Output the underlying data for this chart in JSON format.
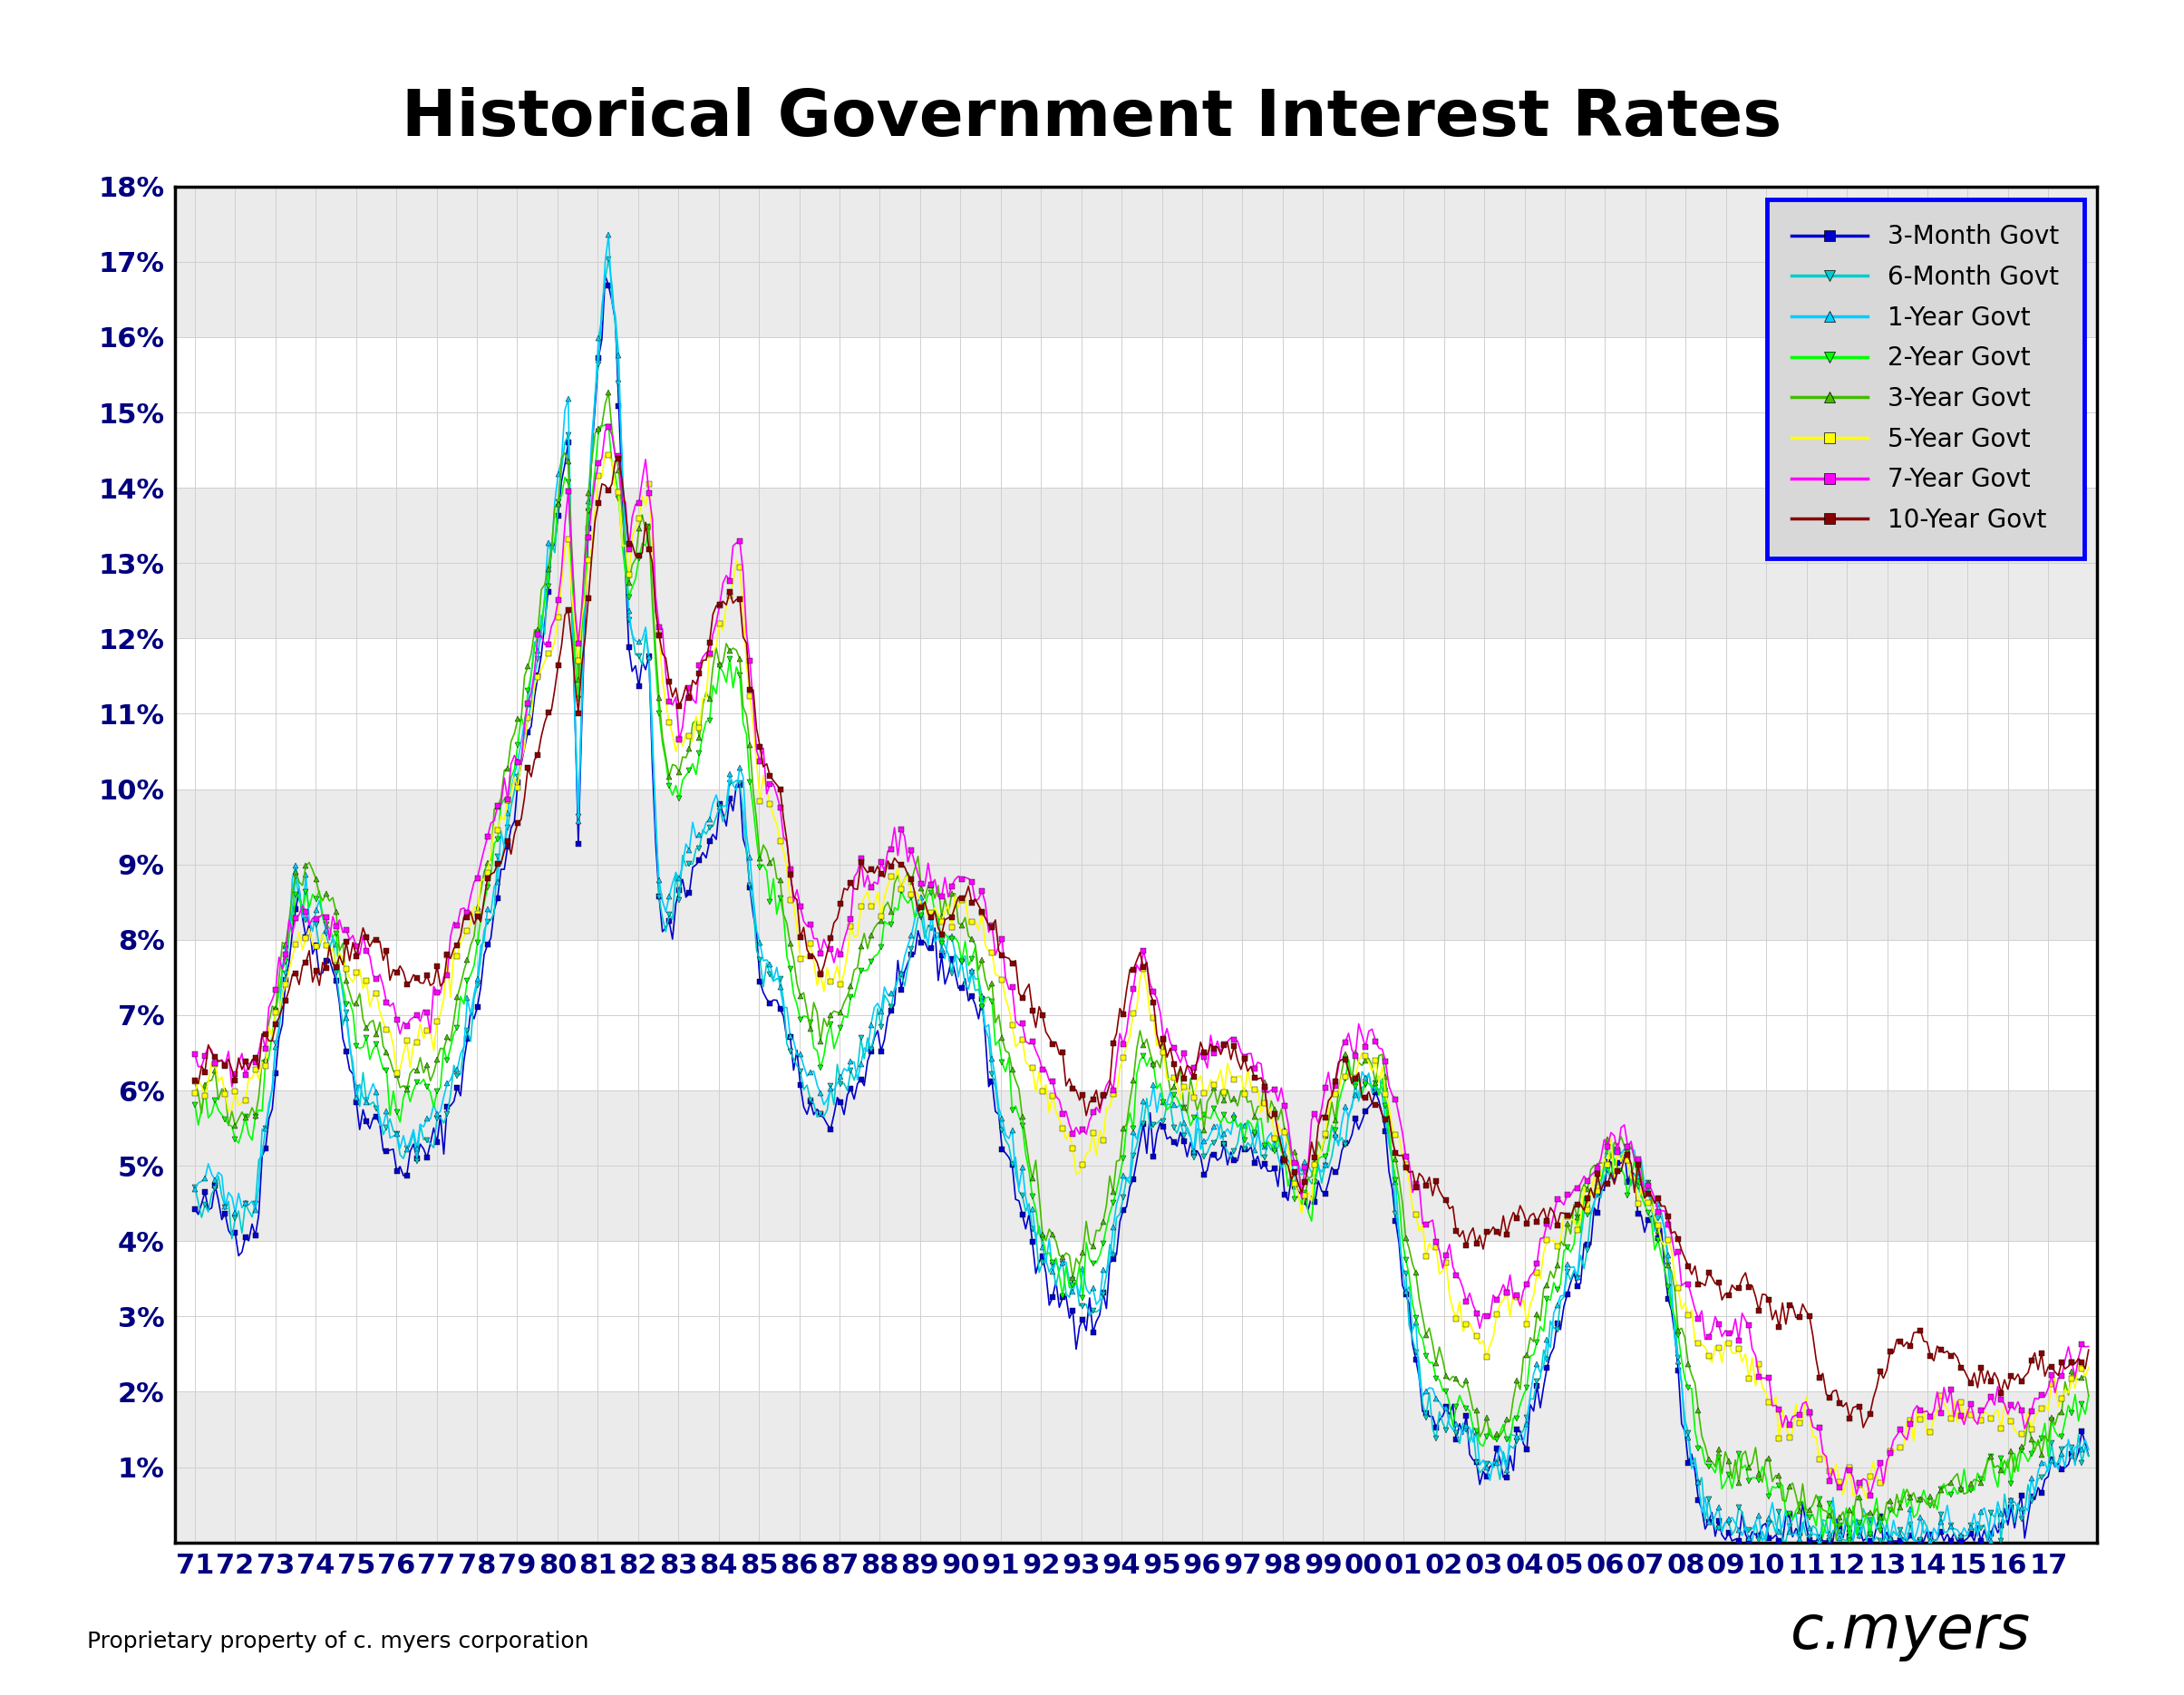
{
  "title": "Historical Government Interest Rates",
  "title_fontsize": 52,
  "background_color": "#ffffff",
  "plot_bg_color": "#ffffff",
  "grid_color": "#d0d0d0",
  "grid_major_color": "#c8c8c8",
  "ylim": [
    0,
    18
  ],
  "yticks": [
    1,
    2,
    3,
    4,
    5,
    6,
    7,
    8,
    9,
    10,
    11,
    12,
    13,
    14,
    15,
    16,
    17,
    18
  ],
  "ytick_labels": [
    "1%",
    "2%",
    "3%",
    "4%",
    "5%",
    "6%",
    "7%",
    "8%",
    "9%",
    "10%",
    "11%",
    "12%",
    "13%",
    "14%",
    "15%",
    "16%",
    "17%",
    "18%"
  ],
  "xlabel_years": [
    "71",
    "72",
    "73",
    "74",
    "75",
    "76",
    "77",
    "78",
    "79",
    "80",
    "81",
    "82",
    "83",
    "84",
    "85",
    "86",
    "87",
    "88",
    "89",
    "90",
    "91",
    "92",
    "93",
    "94",
    "95",
    "96",
    "97",
    "98",
    "99",
    "00",
    "01",
    "02",
    "03",
    "04",
    "05",
    "06",
    "07",
    "08",
    "09",
    "10",
    "11",
    "12",
    "13",
    "14",
    "15",
    "16",
    "17"
  ],
  "series": [
    {
      "name": "3-Month Govt",
      "color": "#0000cc",
      "marker": "s",
      "markersize": 4,
      "linewidth": 1.2
    },
    {
      "name": "6-Month Govt",
      "color": "#00cccc",
      "marker": "v",
      "markersize": 5,
      "linewidth": 1.2
    },
    {
      "name": "1-Year Govt",
      "color": "#00ccff",
      "marker": "^",
      "markersize": 5,
      "linewidth": 1.2
    },
    {
      "name": "2-Year Govt",
      "color": "#00ff00",
      "marker": "v",
      "markersize": 5,
      "linewidth": 1.2
    },
    {
      "name": "3-Year Govt",
      "color": "#44bb00",
      "marker": "^",
      "markersize": 5,
      "linewidth": 1.2
    },
    {
      "name": "5-Year Govt",
      "color": "#ffff00",
      "marker": "s",
      "markersize": 4,
      "linewidth": 1.2
    },
    {
      "name": "7-Year Govt",
      "color": "#ff00ff",
      "marker": "s",
      "markersize": 4,
      "linewidth": 1.2
    },
    {
      "name": "10-Year Govt",
      "color": "#880000",
      "marker": "s",
      "markersize": 4,
      "linewidth": 1.2
    }
  ],
  "footnote": "Proprietary property of c. myers corporation",
  "footnote_fontsize": 18,
  "signature": "c.myers",
  "legend_facecolor": "#d8d8d8",
  "legend_edgecolor": "#0000ff",
  "legend_fontsize": 20,
  "tick_fontsize": 22,
  "tick_color": "#000080"
}
